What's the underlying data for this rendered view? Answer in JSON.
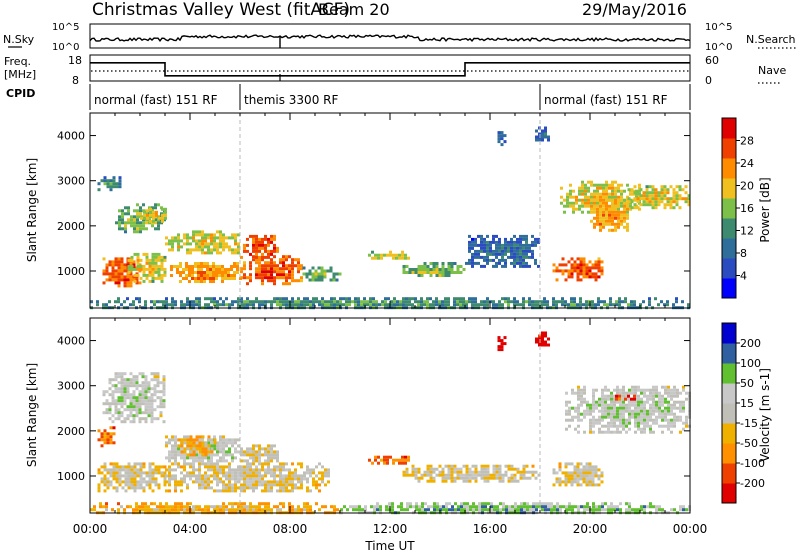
{
  "header": {
    "station": "Christmas Valley West (fitACF)",
    "beam": "Beam 20",
    "date": "29/May/2016"
  },
  "top_panels": {
    "nsky_label": "N.Sky",
    "nsky_ticks": [
      "10^5",
      "10^0"
    ],
    "nsearch_label": "N.Search",
    "nsearch_ticks": [
      "10^5",
      "10^0"
    ],
    "freq_label": "Freq.",
    "freq_unit": "[MHz]",
    "freq_ticks": [
      "18",
      "8"
    ],
    "nave_label": "Nave",
    "nave_ticks": [
      "60",
      "0"
    ],
    "cpid_label": "CPID",
    "cpid_segments": [
      {
        "label": "normal (fast) 151 RF",
        "start_h": 0,
        "end_h": 6
      },
      {
        "label": "themis 3300 RF",
        "start_h": 6,
        "end_h": 18
      },
      {
        "label": "normal (fast) 151 RF",
        "start_h": 18,
        "end_h": 24
      }
    ],
    "freq_series": {
      "breakpoints_h": [
        0,
        3,
        15,
        24
      ],
      "values_mhz": [
        15,
        10,
        15
      ]
    }
  },
  "chart_data": [
    {
      "type": "heatmap",
      "name": "power",
      "ylabel": "Slant Range [km]",
      "ylim_km": [
        180,
        4500
      ],
      "yticks": [
        1000,
        2000,
        3000,
        4000
      ],
      "xlim_h": [
        0,
        24
      ],
      "colorbar_label": "Power [dB]",
      "colorbar_ticks": [
        "28",
        "24",
        "20",
        "16",
        "12",
        "8",
        "4"
      ],
      "colors": [
        "#0000ff",
        "#2a4cc0",
        "#2f6e9a",
        "#3d8a6e",
        "#7cc04a",
        "#f0c020",
        "#ff8c00",
        "#f04000",
        "#e00000"
      ],
      "regions": [
        {
          "t0": 0.5,
          "t1": 2.0,
          "r0": 700,
          "r1": 1300,
          "level": 7
        },
        {
          "t0": 1.5,
          "t1": 3.0,
          "r0": 800,
          "r1": 1400,
          "level": 5
        },
        {
          "t0": 3.2,
          "t1": 6.0,
          "r0": 800,
          "r1": 1200,
          "level": 6
        },
        {
          "t0": 6.0,
          "t1": 8.5,
          "r0": 750,
          "r1": 1350,
          "level": 7
        },
        {
          "t0": 8.5,
          "t1": 10.0,
          "r0": 800,
          "r1": 1100,
          "level": 4
        },
        {
          "t0": 3.0,
          "t1": 6.0,
          "r0": 1400,
          "r1": 1900,
          "level": 5
        },
        {
          "t0": 6.0,
          "t1": 7.5,
          "r0": 1300,
          "r1": 1800,
          "level": 7
        },
        {
          "t0": 0.3,
          "t1": 1.2,
          "r0": 2800,
          "r1": 3100,
          "level": 3
        },
        {
          "t0": 1.0,
          "t1": 3.0,
          "r0": 1900,
          "r1": 2500,
          "level": 4
        },
        {
          "t0": 2.0,
          "t1": 3.0,
          "r0": 2100,
          "r1": 2400,
          "level": 5
        },
        {
          "t0": 11.0,
          "t1": 12.8,
          "r0": 1300,
          "r1": 1450,
          "level": 5
        },
        {
          "t0": 12.5,
          "t1": 15.0,
          "r0": 900,
          "r1": 1200,
          "level": 4
        },
        {
          "t0": 15.0,
          "t1": 18.0,
          "r0": 1100,
          "r1": 1800,
          "level": 2
        },
        {
          "t0": 18.5,
          "t1": 20.5,
          "r0": 800,
          "r1": 1300,
          "level": 7
        },
        {
          "t0": 18.8,
          "t1": 22.0,
          "r0": 2300,
          "r1": 3000,
          "level": 5
        },
        {
          "t0": 20.0,
          "t1": 21.5,
          "r0": 1900,
          "r1": 2600,
          "level": 6
        },
        {
          "t0": 21.5,
          "t1": 24.0,
          "r0": 2400,
          "r1": 2900,
          "level": 5
        },
        {
          "t0": 16.3,
          "t1": 16.6,
          "r0": 3800,
          "r1": 4100,
          "level": 2
        },
        {
          "t0": 17.8,
          "t1": 18.3,
          "r0": 3900,
          "r1": 4200,
          "level": 2
        },
        {
          "t0": 0.0,
          "t1": 24.0,
          "r0": 180,
          "r1": 420,
          "level": 3
        }
      ]
    },
    {
      "type": "heatmap",
      "name": "velocity",
      "ylabel": "Slant Range [km]",
      "ylim_km": [
        180,
        4500
      ],
      "yticks": [
        1000,
        2000,
        3000,
        4000
      ],
      "xlim_h": [
        0,
        24
      ],
      "xticks": [
        "00:00",
        "04:00",
        "08:00",
        "12:00",
        "16:00",
        "20:00",
        "00:00"
      ],
      "xlabel": "Time UT",
      "colorbar_label": "Velocity [m s-1]",
      "colorbar_ticks": [
        "200",
        "100",
        "50",
        "15",
        "-15",
        "-50",
        "-100",
        "-200"
      ],
      "colors": [
        "#e00000",
        "#f04000",
        "#ff9000",
        "#f0b000",
        "#c0c0b8",
        "#c8c8c8",
        "#60c030",
        "#3060a0",
        "#0000d0"
      ],
      "regions": [
        {
          "t0": 0.3,
          "t1": 1.0,
          "r0": 1700,
          "r1": 2100,
          "level": 2
        },
        {
          "t0": 0.3,
          "t1": 3.0,
          "r0": 700,
          "r1": 1300,
          "level": 4
        },
        {
          "t0": 3.0,
          "t1": 9.5,
          "r0": 700,
          "r1": 1300,
          "level": 4
        },
        {
          "t0": 3.0,
          "t1": 6.0,
          "r0": 1300,
          "r1": 1900,
          "level": 5
        },
        {
          "t0": 6.0,
          "t1": 7.5,
          "r0": 1300,
          "r1": 1700,
          "level": 4
        },
        {
          "t0": 0.5,
          "t1": 3.0,
          "r0": 2200,
          "r1": 3300,
          "level": 5
        },
        {
          "t0": 3.5,
          "t1": 5.0,
          "r0": 1500,
          "r1": 1900,
          "level": 3
        },
        {
          "t0": 11.0,
          "t1": 12.8,
          "r0": 1300,
          "r1": 1450,
          "level": 2
        },
        {
          "t0": 12.5,
          "t1": 18.0,
          "r0": 900,
          "r1": 1250,
          "level": 4
        },
        {
          "t0": 18.5,
          "t1": 20.5,
          "r0": 800,
          "r1": 1300,
          "level": 4
        },
        {
          "t0": 19.0,
          "t1": 24.0,
          "r0": 2000,
          "r1": 3000,
          "level": 5
        },
        {
          "t0": 21.0,
          "t1": 22.0,
          "r0": 2700,
          "r1": 2800,
          "level": 1
        },
        {
          "t0": 16.3,
          "t1": 16.6,
          "r0": 3800,
          "r1": 4100,
          "level": 0
        },
        {
          "t0": 17.8,
          "t1": 18.3,
          "r0": 3900,
          "r1": 4200,
          "level": 0
        },
        {
          "t0": 0.0,
          "t1": 10.0,
          "r0": 180,
          "r1": 420,
          "level": 3
        },
        {
          "t0": 10.0,
          "t1": 24.0,
          "r0": 180,
          "r1": 420,
          "level": 6
        }
      ]
    }
  ]
}
